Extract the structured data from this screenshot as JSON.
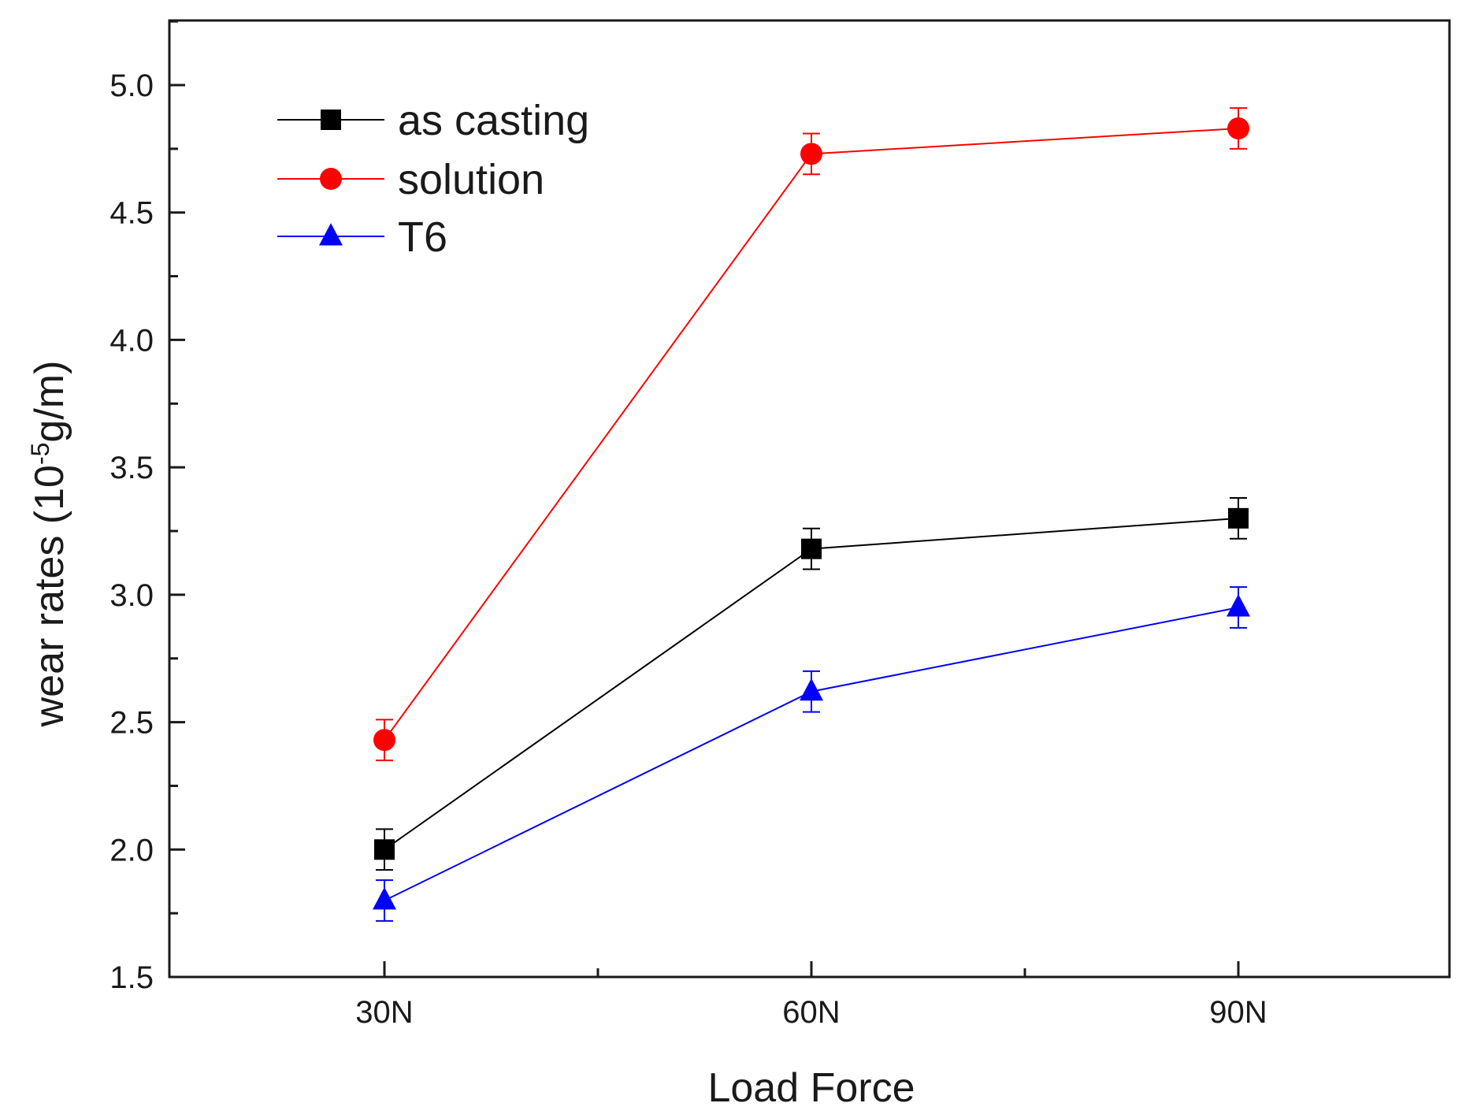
{
  "chart_data": {
    "type": "line",
    "title": "",
    "xlabel": "Load Force",
    "ylabel": "wear rates (10",
    "ylabel_sup": "-5",
    "ylabel_suffix": "g/m)",
    "categories": [
      "30N",
      "60N",
      "90N"
    ],
    "ylim": [
      1.5,
      5.25
    ],
    "yticks": [
      "1.5",
      "2.0",
      "2.5",
      "3.0",
      "3.5",
      "4.0",
      "4.5",
      "5.0"
    ],
    "grid": false,
    "legend_position": "top-left",
    "series": [
      {
        "name": "as casting",
        "color": "#000000",
        "marker": "square",
        "values": [
          2.0,
          3.18,
          3.3
        ],
        "errors": [
          0.08,
          0.08,
          0.08
        ]
      },
      {
        "name": "solution",
        "color": "#ff0000",
        "marker": "circle",
        "values": [
          2.43,
          4.73,
          4.83
        ],
        "errors": [
          0.08,
          0.08,
          0.08
        ]
      },
      {
        "name": "T6",
        "color": "#0000ff",
        "marker": "triangle",
        "values": [
          1.8,
          2.62,
          2.95
        ],
        "errors": [
          0.08,
          0.08,
          0.08
        ]
      }
    ]
  }
}
